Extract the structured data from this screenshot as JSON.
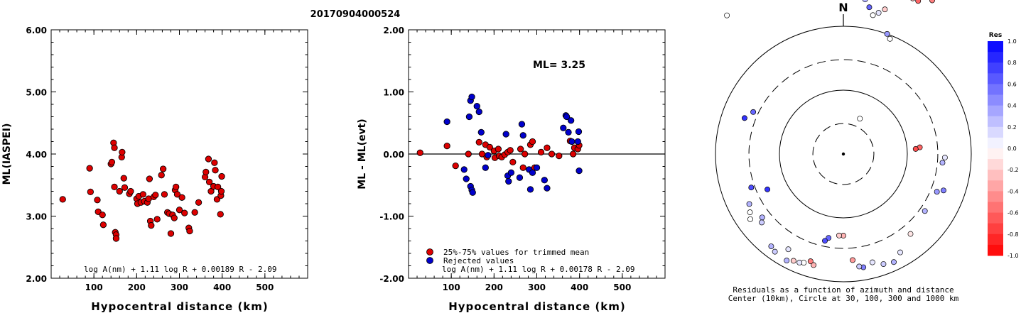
{
  "title": "20170904000524",
  "chart_data": [
    {
      "type": "scatter",
      "xlabel": "Hypocentral distance (km)",
      "ylabel": "ML(IASPEI)",
      "xlim": [
        0,
        600
      ],
      "ylim": [
        2.0,
        6.0
      ],
      "xticks": [
        "100",
        "200",
        "300",
        "400",
        "500"
      ],
      "yticks": [
        "2.00",
        "3.00",
        "4.00",
        "5.00",
        "6.00"
      ],
      "formula": "log A(nm) + 1.11 log R + 0.00189 R - 2.09",
      "points": [
        [
          27,
          3.27
        ],
        [
          90,
          3.77
        ],
        [
          92,
          3.39
        ],
        [
          108,
          3.26
        ],
        [
          110,
          3.07
        ],
        [
          120,
          3.02
        ],
        [
          122,
          2.86
        ],
        [
          140,
          3.84
        ],
        [
          142,
          3.87
        ],
        [
          146,
          4.18
        ],
        [
          148,
          4.1
        ],
        [
          148,
          3.47
        ],
        [
          150,
          2.74
        ],
        [
          152,
          2.7
        ],
        [
          152,
          2.64
        ],
        [
          160,
          3.4
        ],
        [
          165,
          3.95
        ],
        [
          166,
          4.03
        ],
        [
          170,
          3.61
        ],
        [
          172,
          3.46
        ],
        [
          183,
          3.36
        ],
        [
          186,
          3.4
        ],
        [
          200,
          3.28
        ],
        [
          202,
          3.2
        ],
        [
          205,
          3.32
        ],
        [
          210,
          3.22
        ],
        [
          215,
          3.35
        ],
        [
          218,
          3.24
        ],
        [
          225,
          3.22
        ],
        [
          228,
          3.28
        ],
        [
          230,
          3.6
        ],
        [
          232,
          2.92
        ],
        [
          234,
          2.85
        ],
        [
          240,
          3.31
        ],
        [
          244,
          3.34
        ],
        [
          248,
          2.95
        ],
        [
          258,
          3.66
        ],
        [
          262,
          3.76
        ],
        [
          265,
          3.35
        ],
        [
          272,
          3.06
        ],
        [
          276,
          3.04
        ],
        [
          280,
          2.72
        ],
        [
          284,
          3.02
        ],
        [
          288,
          2.97
        ],
        [
          290,
          3.42
        ],
        [
          292,
          3.47
        ],
        [
          295,
          3.35
        ],
        [
          300,
          3.1
        ],
        [
          306,
          3.3
        ],
        [
          312,
          3.05
        ],
        [
          322,
          2.81
        ],
        [
          324,
          2.76
        ],
        [
          336,
          3.06
        ],
        [
          345,
          3.22
        ],
        [
          360,
          3.63
        ],
        [
          362,
          3.71
        ],
        [
          368,
          3.92
        ],
        [
          370,
          3.55
        ],
        [
          374,
          3.4
        ],
        [
          380,
          3.48
        ],
        [
          382,
          3.86
        ],
        [
          384,
          3.74
        ],
        [
          388,
          3.27
        ],
        [
          390,
          3.47
        ],
        [
          396,
          3.03
        ],
        [
          397,
          3.33
        ],
        [
          398,
          3.4
        ],
        [
          399,
          3.64
        ]
      ]
    },
    {
      "type": "scatter",
      "xlabel": "Hypocentral distance (km)",
      "ylabel": "ML - ML(evt)",
      "xlim": [
        0,
        600
      ],
      "ylim": [
        -2.0,
        2.0
      ],
      "xticks": [
        "100",
        "200",
        "300",
        "400",
        "500"
      ],
      "yticks": [
        "-2.00",
        "-1.00",
        "0.00",
        "1.00",
        "2.00"
      ],
      "annotation": "ML= 3.25",
      "formula": "log A(nm) + 1.11 log R + 0.00178 R - 2.09",
      "legend": {
        "placement": "bottom-left",
        "entries": [
          {
            "label": "25%-75% values for trimmed mean",
            "color": "#dd0000"
          },
          {
            "label": "Rejected values",
            "color": "#0000cc"
          }
        ]
      },
      "series": [
        {
          "name": "25%-75% values for trimmed mean",
          "color": "#dd0000",
          "points": [
            [
              27,
              0.02
            ],
            [
              90,
              0.13
            ],
            [
              110,
              -0.19
            ],
            [
              140,
              0.0
            ],
            [
              165,
              0.19
            ],
            [
              172,
              0.0
            ],
            [
              180,
              0.15
            ],
            [
              183,
              -0.05
            ],
            [
              190,
              0.11
            ],
            [
              200,
              0.05
            ],
            [
              202,
              -0.06
            ],
            [
              210,
              0.08
            ],
            [
              212,
              -0.03
            ],
            [
              218,
              -0.05
            ],
            [
              225,
              -0.01
            ],
            [
              232,
              0.03
            ],
            [
              238,
              0.06
            ],
            [
              244,
              -0.13
            ],
            [
              262,
              0.08
            ],
            [
              268,
              -0.22
            ],
            [
              272,
              0.0
            ],
            [
              285,
              0.15
            ],
            [
              290,
              0.2
            ],
            [
              295,
              -0.22
            ],
            [
              310,
              0.03
            ],
            [
              324,
              0.1
            ],
            [
              335,
              0.0
            ],
            [
              352,
              -0.03
            ],
            [
              378,
              0.21
            ],
            [
              385,
              0.0
            ],
            [
              388,
              0.1
            ],
            [
              396,
              0.08
            ],
            [
              399,
              0.14
            ]
          ]
        },
        {
          "name": "Rejected values",
          "color": "#0000cc",
          "points": [
            [
              90,
              0.52
            ],
            [
              142,
              0.6
            ],
            [
              145,
              0.86
            ],
            [
              148,
              0.92
            ],
            [
              145,
              -0.52
            ],
            [
              148,
              -0.58
            ],
            [
              150,
              -0.62
            ],
            [
              130,
              -0.25
            ],
            [
              135,
              -0.4
            ],
            [
              160,
              0.77
            ],
            [
              165,
              0.68
            ],
            [
              170,
              0.35
            ],
            [
              180,
              -0.22
            ],
            [
              186,
              -0.02
            ],
            [
              228,
              0.32
            ],
            [
              232,
              -0.35
            ],
            [
              234,
              -0.44
            ],
            [
              240,
              -0.3
            ],
            [
              260,
              -0.38
            ],
            [
              265,
              0.48
            ],
            [
              268,
              0.3
            ],
            [
              282,
              -0.25
            ],
            [
              285,
              -0.57
            ],
            [
              290,
              -0.3
            ],
            [
              300,
              -0.22
            ],
            [
              318,
              -0.42
            ],
            [
              324,
              -0.55
            ],
            [
              362,
              0.42
            ],
            [
              368,
              0.62
            ],
            [
              370,
              0.6
            ],
            [
              374,
              0.35
            ],
            [
              380,
              0.54
            ],
            [
              382,
              0.2
            ],
            [
              398,
              0.36
            ],
            [
              399,
              -0.27
            ],
            [
              396,
              0.2
            ]
          ]
        }
      ]
    },
    {
      "type": "scatter",
      "projection": "polar",
      "north_label": "N",
      "caption": [
        "Residuals as a function of azimuth and distance",
        "Center (10km), Circle at 30, 100, 300 and 1000 km"
      ],
      "colorbar": {
        "title": "Res",
        "ticks": [
          "1.0",
          "0.8",
          "0.6",
          "0.4",
          "0.2",
          "0.0",
          "-0.2",
          "-0.4",
          "-0.6",
          "-0.8",
          "-1.0"
        ],
        "positive_color": "#0000ff",
        "negative_color": "#ff0000"
      },
      "rings_km": [
        30,
        100,
        300,
        1000
      ],
      "points": [
        [
          350,
          260,
          0.0
        ],
        [
          5,
          250,
          0.0
        ],
        [
          10,
          240,
          0.2
        ],
        [
          12,
          230,
          0.3
        ],
        [
          14,
          245,
          -0.2
        ],
        [
          16,
          240,
          -0.3
        ],
        [
          18,
          250,
          -0.4
        ],
        [
          20,
          255,
          -0.5
        ],
        [
          22,
          245,
          -0.4
        ],
        [
          24,
          240,
          -0.3
        ],
        [
          26,
          240,
          -0.6
        ],
        [
          30,
          250,
          -0.5
        ],
        [
          8,
          220,
          0.3
        ],
        [
          10,
          210,
          0.6
        ],
        [
          12,
          200,
          0.0
        ],
        [
          14,
          205,
          0.1
        ],
        [
          16,
          212,
          -0.2
        ],
        [
          20,
          180,
          0.4
        ],
        [
          22,
          175,
          0.0
        ],
        [
          320,
          255,
          0.0
        ],
        [
          25,
          55,
          0.0
        ],
        [
          85,
          108,
          -0.6
        ],
        [
          86,
          102,
          -0.7
        ],
        [
          92,
          143,
          0.1
        ],
        [
          95,
          140,
          0.3
        ],
        [
          110,
          150,
          0.5
        ],
        [
          112,
          142,
          0.4
        ],
        [
          125,
          140,
          0.3
        ],
        [
          140,
          147,
          -0.1
        ],
        [
          150,
          160,
          0.1
        ],
        [
          155,
          168,
          0.3
        ],
        [
          160,
          165,
          0.2
        ],
        [
          165,
          158,
          0.1
        ],
        [
          170,
          162,
          0.5
        ],
        [
          172,
          160,
          0.2
        ],
        [
          175,
          150,
          -0.4
        ],
        [
          180,
          115,
          -0.3
        ],
        [
          183,
          115,
          -0.2
        ],
        [
          190,
          120,
          0.6
        ],
        [
          192,
          125,
          0.7
        ],
        [
          195,
          162,
          -0.3
        ],
        [
          197,
          158,
          -0.5
        ],
        [
          200,
          163,
          0.0
        ],
        [
          202,
          165,
          0.1
        ],
        [
          205,
          166,
          -0.2
        ],
        [
          208,
          170,
          0.3
        ],
        [
          210,
          155,
          0.1
        ],
        [
          215,
          168,
          0.2
        ],
        [
          218,
          165,
          0.3
        ],
        [
          230,
          150,
          0.2
        ],
        [
          232,
          145,
          0.3
        ],
        [
          235,
          160,
          0.0
        ],
        [
          238,
          155,
          0.0
        ],
        [
          242,
          150,
          0.3
        ],
        [
          250,
          138,
          0.7
        ],
        [
          245,
          118,
          0.8
        ],
        [
          290,
          148,
          0.8
        ],
        [
          295,
          140,
          0.6
        ]
      ]
    }
  ]
}
